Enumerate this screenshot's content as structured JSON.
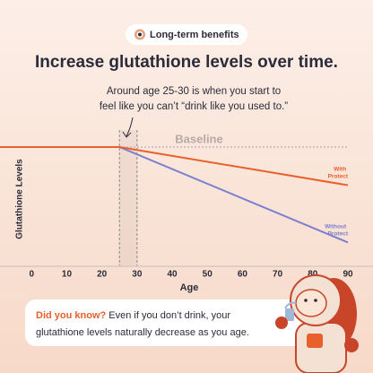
{
  "chart_data": {
    "type": "line",
    "badge": "Long-term benefits",
    "title": "Increase glutathione levels over time.",
    "annotation": [
      "Around age 25-30 is when you start to",
      "feel like you can’t “drink like you used to.”"
    ],
    "highlight_x": [
      25,
      30
    ],
    "baseline_label": "Baseline",
    "baseline_value": 100,
    "x_label": "Age",
    "y_label": "Glutathione Levels",
    "xlim": [
      -9,
      90
    ],
    "xticks": [
      0,
      10,
      20,
      30,
      40,
      50,
      60,
      70,
      80,
      90
    ],
    "ylim": [
      0,
      100
    ],
    "x": [
      -9,
      25,
      90
    ],
    "series": [
      {
        "name": "Without Protect",
        "color": "#7b7fd0",
        "values": [
          100,
          100,
          20
        ]
      },
      {
        "name": "With Protect",
        "color": "#e8602c",
        "values": [
          100,
          100,
          68
        ]
      }
    ],
    "callout": {
      "highlight": "Did you know?",
      "lines": [
        " Even if you don’t drink, your",
        "glutathione levels naturally decrease as you age."
      ]
    }
  }
}
